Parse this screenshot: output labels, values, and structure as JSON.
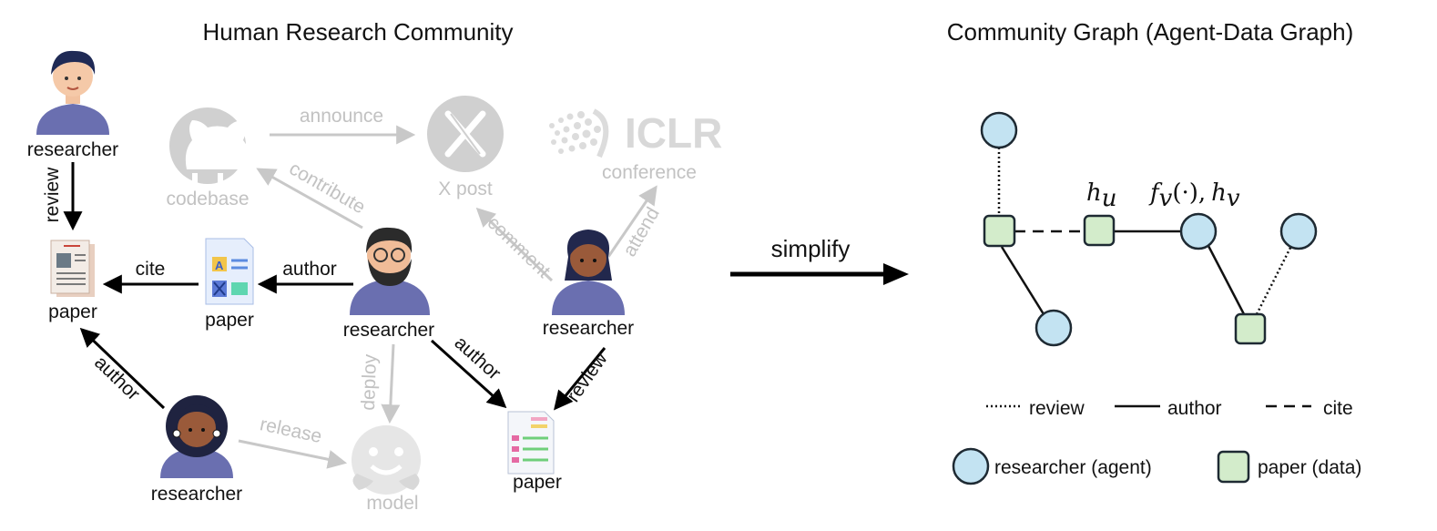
{
  "left_title": "Human Research Community",
  "right_title": "Community Graph (Agent-Data Graph)",
  "human": {
    "researcher_label": "researcher",
    "paper_label": "paper",
    "codebase_label": "codebase",
    "xpost_label": "X post",
    "conference_label": "conference",
    "conference_logo": "ICLR",
    "model_label": "model",
    "edges": {
      "review": "review",
      "cite": "cite",
      "author": "author",
      "announce": "announce",
      "contribute": "contribute",
      "comment": "comment",
      "attend": "attend",
      "deploy": "deploy",
      "release": "release"
    }
  },
  "simplify_label": "simplify",
  "graph": {
    "hu_main": "h",
    "hu_sub": "u",
    "fv_main": "f",
    "fv_sub": "v",
    "fv_args": "(·),",
    "hv_main": "h",
    "hv_sub": "v"
  },
  "legend": {
    "review": "review",
    "author": "author",
    "cite": "cite",
    "agent": "researcher (agent)",
    "data": "paper (data)"
  },
  "colors": {
    "agent_fill": "#c3e3f2",
    "data_fill": "#d3eccb",
    "node_stroke": "#1e2a33",
    "faded": "#c8c8c8",
    "researcher_shirt": "#6a6fb0"
  }
}
